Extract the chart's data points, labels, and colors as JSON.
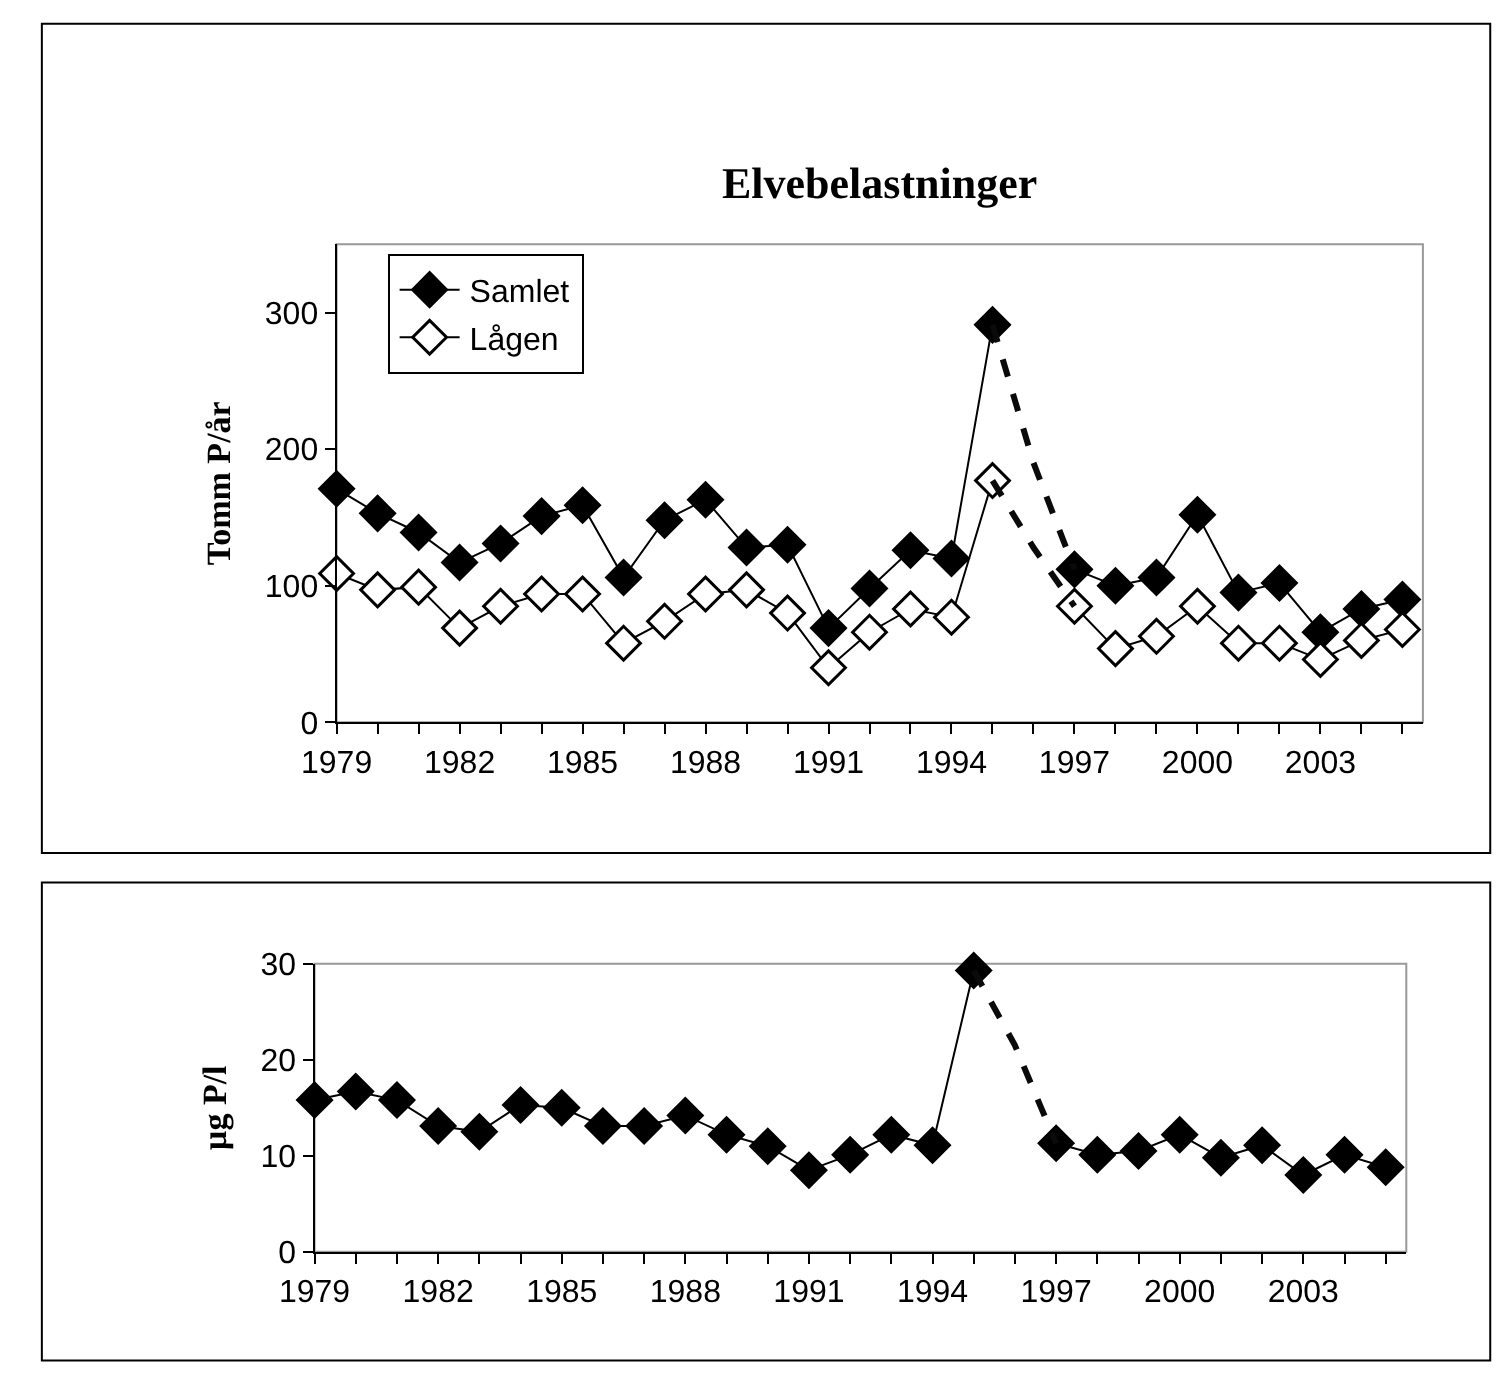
{
  "chart_data": [
    {
      "type": "line",
      "title": "Elvebelastninger",
      "ylabel": "Tomm P/år",
      "marker": "diamond",
      "legend": "top left",
      "grid": false,
      "x": [
        1979,
        1980,
        1981,
        1982,
        1983,
        1984,
        1985,
        1986,
        1987,
        1988,
        1989,
        1990,
        1991,
        1992,
        1993,
        1994,
        1995,
        1996,
        1997,
        1998,
        1999,
        2000,
        2001,
        2002,
        2003,
        2004,
        2005
      ],
      "xlim": [
        1979,
        2005.5
      ],
      "xticks": [
        1979,
        {
          "value": 1980,
          "label": null
        },
        {
          "value": 1981,
          "label": null
        },
        1982,
        {
          "value": 1983,
          "label": null
        },
        {
          "value": 1984,
          "label": null
        },
        1985,
        {
          "value": 1986,
          "label": null
        },
        {
          "value": 1987,
          "label": null
        },
        1988,
        {
          "value": 1989,
          "label": null
        },
        {
          "value": 1990,
          "label": null
        },
        1991,
        {
          "value": 1992,
          "label": null
        },
        {
          "value": 1993,
          "label": null
        },
        1994,
        {
          "value": 1995,
          "label": null
        },
        {
          "value": 1996,
          "label": null
        },
        1997,
        {
          "value": 1998,
          "label": null
        },
        {
          "value": 1999,
          "label": null
        },
        2000,
        {
          "value": 2001,
          "label": null
        },
        {
          "value": 2002,
          "label": null
        },
        2003,
        {
          "value": 2004,
          "label": null
        },
        {
          "value": 2005,
          "label": null
        }
      ],
      "ylim": [
        0,
        350
      ],
      "yticks": [
        0,
        100,
        200,
        300
      ],
      "series": [
        {
          "name": "Samlet",
          "color": "#000000",
          "values": [
            171,
            153,
            139,
            117,
            131,
            151,
            159,
            106,
            148,
            163,
            128,
            130,
            69,
            98,
            126,
            120,
            291,
            null,
            112,
            100,
            106,
            152,
            95,
            102,
            66,
            83,
            90
          ]
        },
        {
          "name": "Lågen",
          "color": "#000000",
          "marker": "diamond-open",
          "values": [
            109,
            97,
            99,
            69,
            85,
            94,
            94,
            58,
            74,
            94,
            97,
            80,
            40,
            66,
            83,
            77,
            177,
            null,
            85,
            54,
            63,
            85,
            58,
            58,
            46,
            60,
            68
          ]
        },
        {
          "color": "#0a0a0a",
          "marker": "none",
          "line_style": "dashed",
          "x": [
            1995,
            1996,
            1997
          ],
          "values": [
            291,
            190,
            112
          ]
        },
        {
          "color": "#0a0a0a",
          "marker": "none",
          "line_style": "dashed",
          "x": [
            1995,
            1996,
            1997
          ],
          "values": [
            177,
            128,
            85
          ]
        }
      ]
    },
    {
      "type": "line",
      "ylabel": "µg P/l",
      "marker": "diamond",
      "legend": false,
      "grid": false,
      "x": [
        1979,
        1980,
        1981,
        1982,
        1983,
        1984,
        1985,
        1986,
        1987,
        1988,
        1989,
        1990,
        1991,
        1992,
        1993,
        1994,
        1995,
        1996,
        1997,
        1998,
        1999,
        2000,
        2001,
        2002,
        2003,
        2004,
        2005
      ],
      "xlim": [
        1979,
        2005.5
      ],
      "xticks": [
        1979,
        {
          "value": 1980,
          "label": null
        },
        {
          "value": 1981,
          "label": null
        },
        1982,
        {
          "value": 1983,
          "label": null
        },
        {
          "value": 1984,
          "label": null
        },
        1985,
        {
          "value": 1986,
          "label": null
        },
        {
          "value": 1987,
          "label": null
        },
        1988,
        {
          "value": 1989,
          "label": null
        },
        {
          "value": 1990,
          "label": null
        },
        1991,
        {
          "value": 1992,
          "label": null
        },
        {
          "value": 1993,
          "label": null
        },
        1994,
        {
          "value": 1995,
          "label": null
        },
        {
          "value": 1996,
          "label": null
        },
        1997,
        {
          "value": 1998,
          "label": null
        },
        {
          "value": 1999,
          "label": null
        },
        2000,
        {
          "value": 2001,
          "label": null
        },
        {
          "value": 2002,
          "label": null
        },
        2003,
        {
          "value": 2004,
          "label": null
        },
        {
          "value": 2005,
          "label": null
        }
      ],
      "ylim": [
        0,
        30
      ],
      "yticks": [
        0,
        10,
        20,
        30
      ],
      "series": [
        {
          "color": "#000000",
          "values": [
            15.8,
            16.7,
            15.8,
            13.1,
            12.5,
            15.3,
            15.0,
            13.1,
            13.1,
            14.2,
            12.2,
            11.0,
            8.5,
            10.1,
            12.2,
            11.1,
            29.3,
            null,
            11.3,
            10.1,
            10.5,
            12.2,
            9.8,
            11.1,
            8.0,
            10.1,
            8.8
          ]
        },
        {
          "color": "#0a0a0a",
          "marker": "none",
          "line_style": "dashed",
          "x": [
            1995,
            1996,
            1997
          ],
          "values": [
            29.3,
            21.5,
            11.3
          ]
        }
      ]
    }
  ]
}
